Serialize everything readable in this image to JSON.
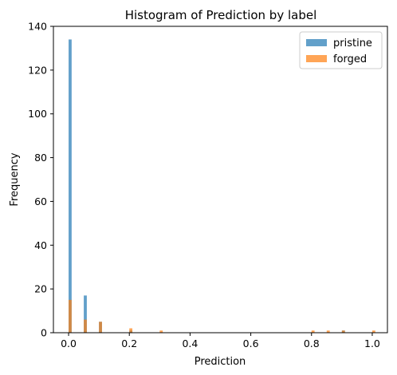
{
  "chart_data": {
    "type": "bar",
    "title": "Histogram of Prediction by label",
    "xlabel": "Prediction",
    "ylabel": "Frequency",
    "xlim": [
      -0.05,
      1.05
    ],
    "ylim": [
      0,
      140
    ],
    "xticks": [
      0.0,
      0.2,
      0.4,
      0.6,
      0.8,
      1.0
    ],
    "xtick_labels": [
      "0.0",
      "0.2",
      "0.4",
      "0.6",
      "0.8",
      "1.0"
    ],
    "yticks": [
      0,
      20,
      40,
      60,
      80,
      100,
      120,
      140
    ],
    "ytick_labels": [
      "0",
      "20",
      "40",
      "60",
      "80",
      "100",
      "120",
      "140"
    ],
    "bin_width": 0.01,
    "grid": false,
    "legend_position": "top-right",
    "series": [
      {
        "name": "pristine",
        "color": "#1f77b4",
        "opacity": 0.7,
        "bins": [
          {
            "x": 0.0,
            "count": 134
          },
          {
            "x": 0.05,
            "count": 17
          },
          {
            "x": 0.1,
            "count": 5
          },
          {
            "x": 0.2,
            "count": 1
          },
          {
            "x": 0.9,
            "count": 1
          }
        ]
      },
      {
        "name": "forged",
        "color": "#ff7f0e",
        "opacity": 0.7,
        "bins": [
          {
            "x": 0.0,
            "count": 15
          },
          {
            "x": 0.05,
            "count": 6
          },
          {
            "x": 0.1,
            "count": 5
          },
          {
            "x": 0.2,
            "count": 2
          },
          {
            "x": 0.3,
            "count": 1
          },
          {
            "x": 0.8,
            "count": 1
          },
          {
            "x": 0.85,
            "count": 1
          },
          {
            "x": 0.9,
            "count": 1
          },
          {
            "x": 1.0,
            "count": 1
          }
        ]
      }
    ]
  }
}
